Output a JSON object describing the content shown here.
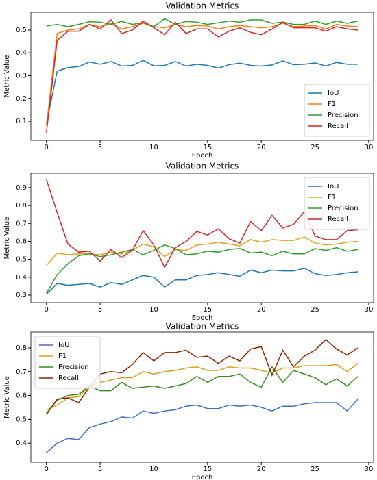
{
  "chart_data": [
    {
      "type": "line",
      "title": "Validation Metrics",
      "xlabel": "Epoch",
      "ylabel": "Metric Value",
      "x": [
        0,
        1,
        2,
        3,
        4,
        5,
        6,
        7,
        8,
        9,
        10,
        11,
        12,
        13,
        14,
        15,
        16,
        17,
        18,
        19,
        20,
        21,
        22,
        23,
        24,
        25,
        26,
        27,
        28,
        29
      ],
      "xlim": [
        -1.45,
        30.45
      ],
      "ylim": [
        0.016,
        0.578
      ],
      "xticks": [
        0,
        5,
        10,
        15,
        20,
        25,
        30
      ],
      "yticks": [
        0.1,
        0.2,
        0.3,
        0.4,
        0.5
      ],
      "legend": "lower right",
      "series": [
        {
          "name": "IoU",
          "color": "#1f77b4",
          "values": [
            0.09,
            0.32,
            0.335,
            0.34,
            0.36,
            0.35,
            0.362,
            0.342,
            0.345,
            0.367,
            0.343,
            0.345,
            0.362,
            0.342,
            0.35,
            0.345,
            0.333,
            0.348,
            0.355,
            0.345,
            0.342,
            0.347,
            0.365,
            0.348,
            0.35,
            0.356,
            0.342,
            0.358,
            0.35,
            0.35
          ]
        },
        {
          "name": "F1",
          "color": "#ff7f0e",
          "values": [
            0.08,
            0.485,
            0.5,
            0.505,
            0.525,
            0.515,
            0.53,
            0.505,
            0.515,
            0.53,
            0.515,
            0.51,
            0.525,
            0.515,
            0.52,
            0.518,
            0.505,
            0.515,
            0.52,
            0.515,
            0.51,
            0.515,
            0.53,
            0.515,
            0.518,
            0.52,
            0.505,
            0.525,
            0.518,
            0.515
          ]
        },
        {
          "name": "Precision",
          "color": "#2ca02c",
          "values": [
            0.518,
            0.525,
            0.515,
            0.525,
            0.537,
            0.535,
            0.525,
            0.538,
            0.525,
            0.533,
            0.515,
            0.55,
            0.525,
            0.538,
            0.535,
            0.525,
            0.532,
            0.54,
            0.535,
            0.545,
            0.545,
            0.53,
            0.535,
            0.525,
            0.525,
            0.54,
            0.525,
            0.54,
            0.53,
            0.54
          ]
        },
        {
          "name": "Recall",
          "color": "#d62728",
          "values": [
            0.05,
            0.455,
            0.495,
            0.495,
            0.525,
            0.505,
            0.545,
            0.485,
            0.5,
            0.54,
            0.51,
            0.48,
            0.535,
            0.485,
            0.505,
            0.505,
            0.47,
            0.495,
            0.51,
            0.49,
            0.48,
            0.505,
            0.535,
            0.51,
            0.51,
            0.51,
            0.495,
            0.515,
            0.505,
            0.5
          ]
        }
      ]
    },
    {
      "type": "line",
      "title": "Validation Metrics",
      "xlabel": "Epoch",
      "ylabel": "Metric Value",
      "x": [
        0,
        1,
        2,
        3,
        4,
        5,
        6,
        7,
        8,
        9,
        10,
        11,
        12,
        13,
        14,
        15,
        16,
        17,
        18,
        19,
        20,
        21,
        22,
        23,
        24,
        25,
        26,
        27,
        28,
        29
      ],
      "xlim": [
        -1.45,
        30.45
      ],
      "ylim": [
        0.258,
        0.98
      ],
      "xticks": [
        0,
        5,
        10,
        15,
        20,
        25,
        30
      ],
      "yticks": [
        0.3,
        0.4,
        0.5,
        0.6,
        0.7,
        0.8,
        0.9
      ],
      "legend": "upper right",
      "series": [
        {
          "name": "IoU",
          "color": "#1f77b4",
          "values": [
            0.305,
            0.365,
            0.355,
            0.36,
            0.365,
            0.345,
            0.37,
            0.36,
            0.385,
            0.41,
            0.4,
            0.345,
            0.385,
            0.385,
            0.41,
            0.415,
            0.425,
            0.415,
            0.405,
            0.44,
            0.425,
            0.44,
            0.435,
            0.435,
            0.45,
            0.42,
            0.41,
            0.415,
            0.425,
            0.43
          ]
        },
        {
          "name": "F1",
          "color": "#e0a020",
          "values": [
            0.465,
            0.535,
            0.525,
            0.53,
            0.53,
            0.525,
            0.54,
            0.53,
            0.55,
            0.585,
            0.57,
            0.515,
            0.555,
            0.55,
            0.58,
            0.585,
            0.595,
            0.585,
            0.575,
            0.61,
            0.595,
            0.61,
            0.605,
            0.605,
            0.625,
            0.59,
            0.58,
            0.585,
            0.595,
            0.6
          ]
        },
        {
          "name": "Precision",
          "color": "#2ca02c",
          "values": [
            0.31,
            0.415,
            0.475,
            0.52,
            0.53,
            0.515,
            0.525,
            0.54,
            0.555,
            0.525,
            0.55,
            0.58,
            0.56,
            0.525,
            0.53,
            0.545,
            0.54,
            0.555,
            0.56,
            0.535,
            0.54,
            0.52,
            0.545,
            0.53,
            0.53,
            0.56,
            0.55,
            0.565,
            0.545,
            0.555
          ]
        },
        {
          "name": "Recall",
          "color": "#d62728",
          "values": [
            0.945,
            0.76,
            0.585,
            0.54,
            0.545,
            0.49,
            0.555,
            0.51,
            0.55,
            0.66,
            0.58,
            0.455,
            0.565,
            0.6,
            0.655,
            0.635,
            0.67,
            0.615,
            0.59,
            0.71,
            0.66,
            0.745,
            0.675,
            0.695,
            0.765,
            0.63,
            0.61,
            0.61,
            0.66,
            0.665
          ]
        }
      ]
    },
    {
      "type": "line",
      "title": "Validation Metrics",
      "xlabel": "Epoch",
      "ylabel": "Metric Value",
      "x": [
        0,
        1,
        2,
        3,
        4,
        5,
        6,
        7,
        8,
        9,
        10,
        11,
        12,
        13,
        14,
        15,
        16,
        17,
        18,
        19,
        20,
        21,
        22,
        23,
        24,
        25,
        26,
        27,
        28,
        29
      ],
      "xlim": [
        -1.45,
        30.45
      ],
      "ylim": [
        0.32,
        0.866
      ],
      "xticks": [
        0,
        5,
        10,
        15,
        20,
        25,
        30
      ],
      "yticks": [
        0.4,
        0.5,
        0.6,
        0.7,
        0.8
      ],
      "legend": "upper left",
      "series": [
        {
          "name": "IoU",
          "color": "#3a6fc4",
          "values": [
            0.36,
            0.4,
            0.42,
            0.415,
            0.465,
            0.48,
            0.49,
            0.51,
            0.505,
            0.535,
            0.525,
            0.535,
            0.54,
            0.555,
            0.56,
            0.545,
            0.545,
            0.56,
            0.555,
            0.56,
            0.55,
            0.535,
            0.555,
            0.555,
            0.565,
            0.57,
            0.57,
            0.57,
            0.535,
            0.585
          ]
        },
        {
          "name": "F1",
          "color": "#d4a017",
          "values": [
            0.54,
            0.56,
            0.59,
            0.595,
            0.64,
            0.655,
            0.665,
            0.675,
            0.675,
            0.7,
            0.69,
            0.7,
            0.705,
            0.715,
            0.72,
            0.705,
            0.705,
            0.72,
            0.715,
            0.715,
            0.705,
            0.695,
            0.715,
            0.715,
            0.725,
            0.725,
            0.725,
            0.73,
            0.7,
            0.735
          ]
        },
        {
          "name": "Precision",
          "color": "#3a8a1c",
          "values": [
            0.525,
            0.58,
            0.6,
            0.605,
            0.64,
            0.62,
            0.62,
            0.655,
            0.63,
            0.635,
            0.64,
            0.63,
            0.64,
            0.65,
            0.68,
            0.655,
            0.68,
            0.68,
            0.69,
            0.655,
            0.635,
            0.72,
            0.655,
            0.705,
            0.69,
            0.675,
            0.645,
            0.67,
            0.64,
            0.68
          ]
        },
        {
          "name": "Recall",
          "color": "#8b2500",
          "values": [
            0.52,
            0.585,
            0.59,
            0.57,
            0.635,
            0.69,
            0.7,
            0.695,
            0.73,
            0.78,
            0.745,
            0.78,
            0.78,
            0.79,
            0.76,
            0.765,
            0.735,
            0.765,
            0.745,
            0.795,
            0.805,
            0.685,
            0.79,
            0.72,
            0.765,
            0.79,
            0.835,
            0.795,
            0.77,
            0.8
          ]
        }
      ]
    }
  ]
}
